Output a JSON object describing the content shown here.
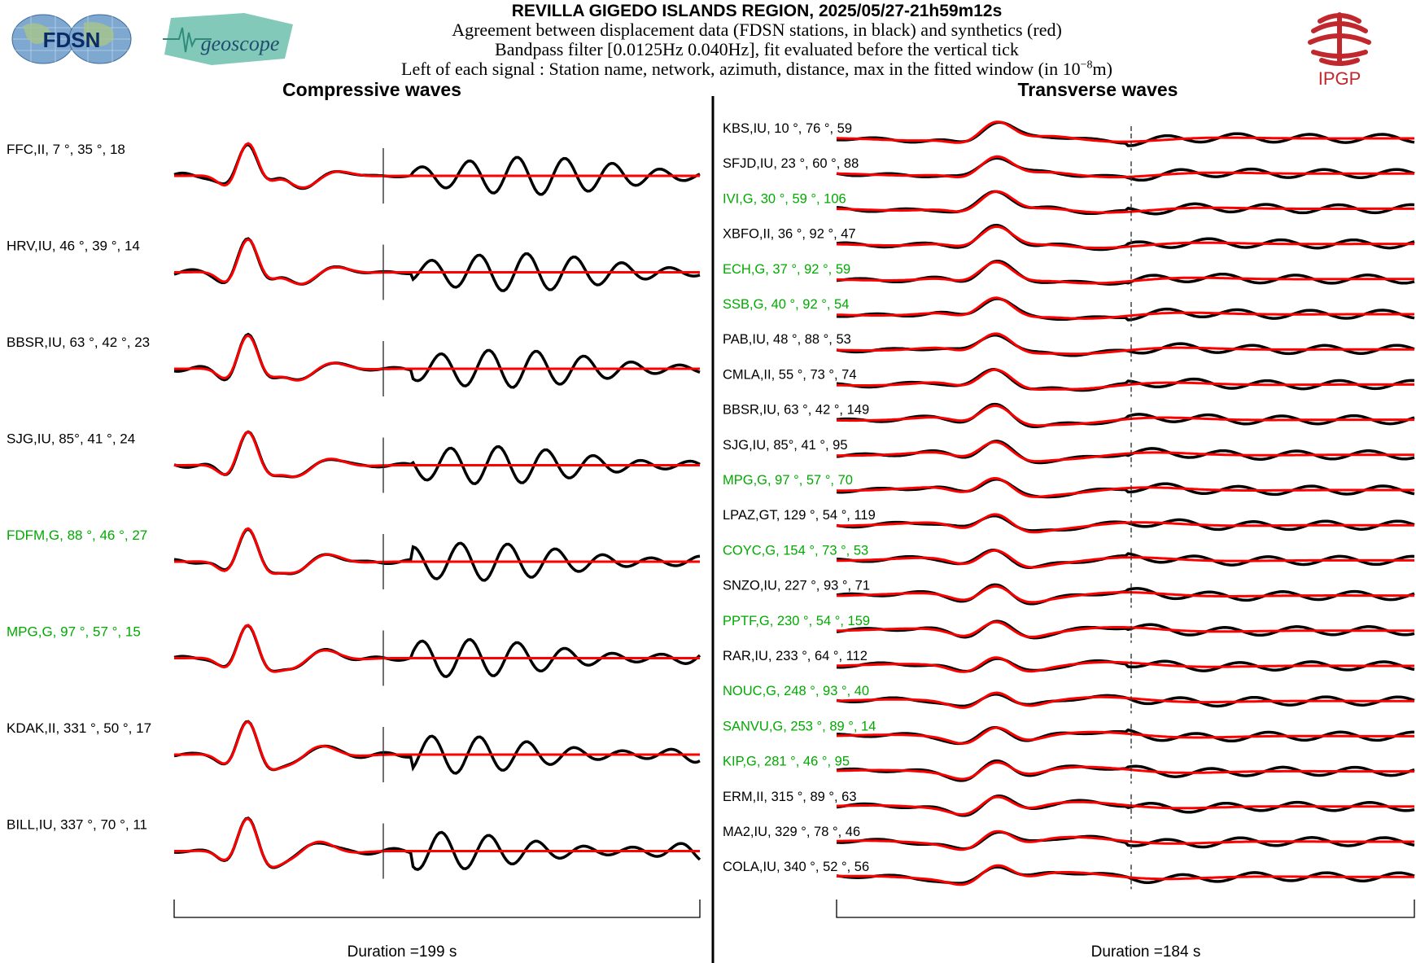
{
  "header": {
    "title": "REVILLA GIGEDO ISLANDS REGION, 2025/05/27-21h59m12s",
    "line1": "Agreement between displacement data (FDSN stations, in black) and synthetics (red)",
    "line2": "Bandpass filter [0.0125Hz 0.040Hz], fit evaluated before the vertical tick",
    "line3_text": "Left of each signal : Station name, network, azimuth, distance, max in the fitted window (in 10",
    "line3_exp": "−8",
    "line3_unit": "m)"
  },
  "logos": {
    "fdsn": "FDSN",
    "geoscope": "geoscope",
    "ipgp": "IPGP"
  },
  "colors": {
    "data": "#000000",
    "synthetic": "#ff0000",
    "green_station": "#00aa00",
    "ipgp_red": "#c0282d",
    "fdsn_globe": "#7fa8d0",
    "geoscope": "#6cbfae"
  },
  "chart_data": [
    {
      "type": "line",
      "title": "Compressive waves",
      "footer": "Duration =199 s",
      "duration_s": 199,
      "series": [
        {
          "name": "data (black)"
        },
        {
          "name": "synthetics (red)"
        }
      ],
      "stations": [
        {
          "station": "FFC",
          "network": "II",
          "azimuth": 7,
          "distance": 35,
          "max": 18,
          "green": false,
          "label": "FFC,II, 7 °, 35 °, 18"
        },
        {
          "station": "HRV",
          "network": "IU",
          "azimuth": 46,
          "distance": 39,
          "max": 14,
          "green": false,
          "label": "HRV,IU, 46 °, 39 °, 14"
        },
        {
          "station": "BBSR",
          "network": "IU",
          "azimuth": 63,
          "distance": 42,
          "max": 23,
          "green": false,
          "label": "BBSR,IU, 63 °, 42 °, 23"
        },
        {
          "station": "SJG",
          "network": "IU",
          "azimuth": 85,
          "distance": 41,
          "max": 24,
          "green": false,
          "label": "SJG,IU, 85°, 41 °, 24"
        },
        {
          "station": "FDFM",
          "network": "G",
          "azimuth": 88,
          "distance": 46,
          "max": 27,
          "green": true,
          "label": "FDFM,G, 88 °, 46 °, 27"
        },
        {
          "station": "MPG",
          "network": "G",
          "azimuth": 97,
          "distance": 57,
          "max": 15,
          "green": true,
          "label": "MPG,G, 97 °, 57 °, 15"
        },
        {
          "station": "KDAK",
          "network": "II",
          "azimuth": 331,
          "distance": 50,
          "max": 17,
          "green": false,
          "label": "KDAK,II, 331 °, 50 °, 17"
        },
        {
          "station": "BILL",
          "network": "IU",
          "azimuth": 337,
          "distance": 70,
          "max": 11,
          "green": false,
          "label": "BILL,IU, 337 °, 70 °, 11"
        }
      ]
    },
    {
      "type": "line",
      "title": "Transverse waves",
      "footer": "Duration =184 s",
      "duration_s": 184,
      "series": [
        {
          "name": "data (black)"
        },
        {
          "name": "synthetics (red)"
        }
      ],
      "stations": [
        {
          "station": "KBS",
          "network": "IU",
          "azimuth": 10,
          "distance": 76,
          "max": 59,
          "green": false,
          "label": "KBS,IU, 10 °, 76 °, 59"
        },
        {
          "station": "SFJD",
          "network": "IU",
          "azimuth": 23,
          "distance": 60,
          "max": 88,
          "green": false,
          "label": "SFJD,IU, 23 °, 60 °, 88"
        },
        {
          "station": "IVI",
          "network": "G",
          "azimuth": 30,
          "distance": 59,
          "max": 106,
          "green": true,
          "label": "IVI,G, 30 °, 59 °, 106"
        },
        {
          "station": "XBFO",
          "network": "II",
          "azimuth": 36,
          "distance": 92,
          "max": 47,
          "green": false,
          "label": "XBFO,II, 36 °, 92 °, 47"
        },
        {
          "station": "ECH",
          "network": "G",
          "azimuth": 37,
          "distance": 92,
          "max": 59,
          "green": true,
          "label": "ECH,G, 37 °, 92 °, 59"
        },
        {
          "station": "SSB",
          "network": "G",
          "azimuth": 40,
          "distance": 92,
          "max": 54,
          "green": true,
          "label": "SSB,G, 40 °, 92 °, 54"
        },
        {
          "station": "PAB",
          "network": "IU",
          "azimuth": 48,
          "distance": 88,
          "max": 53,
          "green": false,
          "label": "PAB,IU, 48 °, 88 °, 53"
        },
        {
          "station": "CMLA",
          "network": "II",
          "azimuth": 55,
          "distance": 73,
          "max": 74,
          "green": false,
          "label": "CMLA,II, 55 °, 73 °, 74"
        },
        {
          "station": "BBSR",
          "network": "IU",
          "azimuth": 63,
          "distance": 42,
          "max": 149,
          "green": false,
          "label": "BBSR,IU, 63 °, 42 °, 149"
        },
        {
          "station": "SJG",
          "network": "IU",
          "azimuth": 85,
          "distance": 41,
          "max": 95,
          "green": false,
          "label": "SJG,IU, 85°, 41 °, 95"
        },
        {
          "station": "MPG",
          "network": "G",
          "azimuth": 97,
          "distance": 57,
          "max": 70,
          "green": true,
          "label": "MPG,G, 97 °, 57 °, 70"
        },
        {
          "station": "LPAZ",
          "network": "GT",
          "azimuth": 129,
          "distance": 54,
          "max": 119,
          "green": false,
          "label": "LPAZ,GT, 129 °, 54 °, 119"
        },
        {
          "station": "COYC",
          "network": "G",
          "azimuth": 154,
          "distance": 73,
          "max": 53,
          "green": true,
          "label": "COYC,G, 154 °, 73 °, 53"
        },
        {
          "station": "SNZO",
          "network": "IU",
          "azimuth": 227,
          "distance": 93,
          "max": 71,
          "green": false,
          "label": "SNZO,IU, 227 °, 93 °, 71"
        },
        {
          "station": "PPTF",
          "network": "G",
          "azimuth": 230,
          "distance": 54,
          "max": 159,
          "green": true,
          "label": "PPTF,G, 230 °, 54 °, 159"
        },
        {
          "station": "RAR",
          "network": "IU",
          "azimuth": 233,
          "distance": 64,
          "max": 112,
          "green": false,
          "label": "RAR,IU, 233 °, 64 °, 112"
        },
        {
          "station": "NOUC",
          "network": "G",
          "azimuth": 248,
          "distance": 93,
          "max": 40,
          "green": true,
          "label": "NOUC,G, 248 °, 93 °, 40"
        },
        {
          "station": "SANVU",
          "network": "G",
          "azimuth": 253,
          "distance": 89,
          "max": 14,
          "green": true,
          "label": "SANVU,G, 253 °, 89 °, 14"
        },
        {
          "station": "KIP",
          "network": "G",
          "azimuth": 281,
          "distance": 46,
          "max": 95,
          "green": true,
          "label": "KIP,G, 281 °, 46 °, 95"
        },
        {
          "station": "ERM",
          "network": "II",
          "azimuth": 315,
          "distance": 89,
          "max": 63,
          "green": false,
          "label": "ERM,II, 315 °, 89 °, 63"
        },
        {
          "station": "MA2",
          "network": "IU",
          "azimuth": 329,
          "distance": 78,
          "max": 46,
          "green": false,
          "label": "MA2,IU, 329 °, 78 °, 46"
        },
        {
          "station": "COLA",
          "network": "IU",
          "azimuth": 340,
          "distance": 52,
          "max": 56,
          "green": false,
          "label": "COLA,IU, 340 °, 52 °, 56"
        }
      ]
    }
  ]
}
